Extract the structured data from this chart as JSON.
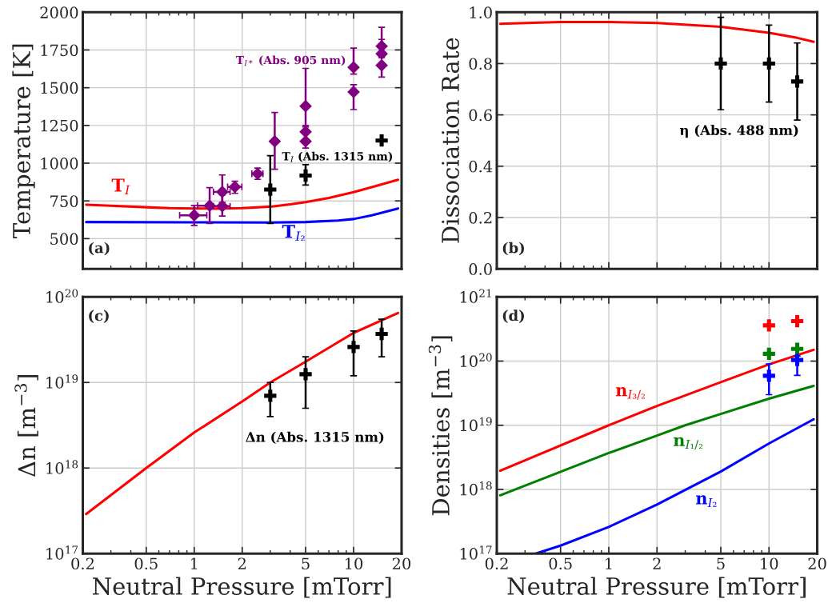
{
  "chart_data": [
    {
      "type": "scatter",
      "ylabel": "Temperature [K]",
      "log": "x",
      "grid": true,
      "tick_labels": "y",
      "xlim": [
        0.2,
        20
      ],
      "xticks": [
        0.2,
        0.5,
        1,
        2,
        5,
        10,
        20
      ],
      "ylim": [
        300,
        2000
      ],
      "yticks": [
        500,
        750,
        1000,
        1250,
        1500,
        1750,
        2000
      ],
      "annotations": [
        "(a)"
      ],
      "series": [
        {
          "name": "T$_{I*}$ (Abs. 905 nm)",
          "color": "#800080",
          "marker": "diamond",
          "x": [
            1.0,
            1.25,
            1.5,
            1.5,
            1.8,
            2.5,
            3.2,
            5,
            5,
            5,
            10,
            10,
            15,
            15,
            15
          ],
          "values": [
            655,
            718,
            810,
            715,
            843,
            930,
            1145,
            1378,
            1208,
            1145,
            1635,
            1472,
            1775,
            1725,
            1648
          ],
          "errors": [
            [
              588,
              720
            ],
            [
              600,
              838
            ],
            [
              740,
              922
            ],
            [
              650,
              790
            ],
            [
              800,
              880
            ],
            [
              893,
              968
            ],
            [
              960,
              1336
            ],
            [
              1240,
              1628
            ],
            [
              1150,
              1250
            ],
            [
              1100,
              1195
            ],
            [
              1590,
              1762
            ],
            [
              1355,
              1520
            ],
            [
              1700,
              1900
            ],
            [
              1725,
              1820
            ],
            [
              1570,
              1648
            ]
          ],
          "xerrors": [
            [
              0.81,
              1.2
            ],
            [
              1.05,
              1.25
            ],
            [
              1.32,
              1.68
            ],
            [
              1.32,
              1.68
            ],
            [
              1.62,
              1.99
            ],
            [
              2.3,
              2.7
            ],
            null,
            null,
            null,
            null,
            null,
            null,
            null,
            null,
            null
          ]
        },
        {
          "name": "T$_{I}$ (Abs. 1315 nm)",
          "color": "#000000",
          "marker": "cross",
          "x": [
            3,
            5,
            15
          ],
          "values": [
            825,
            918,
            1150
          ],
          "errors": [
            [
              600,
              1050
            ],
            [
              855,
              990
            ],
            null
          ]
        },
        {
          "type": "line",
          "name": "T$_{I}$",
          "color": "#ff0000",
          "marker": "none",
          "x": [
            0.21,
            0.3,
            0.5,
            0.7,
            1,
            1.5,
            2,
            3,
            4,
            5,
            7,
            10,
            14,
            19
          ],
          "values": [
            725,
            718,
            708,
            702,
            700,
            699,
            702,
            712,
            727,
            742,
            770,
            808,
            850,
            890
          ]
        },
        {
          "type": "line",
          "name": "T$_{I₂}$",
          "color": "#0000ff",
          "marker": "none",
          "x": [
            0.21,
            1,
            3,
            5,
            8,
            10,
            13,
            19
          ],
          "values": [
            610,
            608,
            607,
            610,
            620,
            630,
            655,
            700
          ]
        }
      ]
    },
    {
      "type": "scatter",
      "ylabel": "Dissociation Rate",
      "log": "x",
      "grid": true,
      "tick_labels": "y",
      "xlim": [
        0.2,
        20
      ],
      "xticks": [
        0.2,
        0.5,
        1,
        2,
        5,
        10,
        20
      ],
      "ylim": [
        0,
        1
      ],
      "yticks": [
        {
          "value": 0,
          "label": "0.0"
        },
        0.2,
        0.4,
        0.6,
        0.8,
        {
          "value": 1,
          "label": "1.0"
        }
      ],
      "annotations": [
        "(b)"
      ],
      "series": [
        {
          "type": "line",
          "color": "#ff0000",
          "marker": "none",
          "x": [
            0.21,
            0.5,
            1,
            2,
            5,
            10,
            15,
            19
          ],
          "values": [
            0.955,
            0.962,
            0.962,
            0.958,
            0.943,
            0.92,
            0.9,
            0.885
          ]
        },
        {
          "name": "η (Abs. 488 nm)",
          "color": "#000000",
          "marker": "cross",
          "x": [
            5,
            10,
            15
          ],
          "values": [
            0.8,
            0.8,
            0.73
          ],
          "errors": [
            [
              0.62,
              0.98
            ],
            [
              0.65,
              0.95
            ],
            [
              0.58,
              0.88
            ]
          ]
        }
      ]
    },
    {
      "type": "scatter",
      "xlabel": "Neutral Pressure [mTorr]",
      "ylabel": "Δn [m$^{−3}$]",
      "log": "xy",
      "grid": true,
      "xlim": [
        0.2,
        20
      ],
      "xticks": [
        0.2,
        0.5,
        1,
        2,
        5,
        10,
        20
      ],
      "ylim": [
        1e+17,
        1e+20
      ],
      "yticks": [
        {
          "value": 1e+17,
          "label": "10$^{17}$"
        },
        {
          "value": 1e+18,
          "label": "10$^{18}$"
        },
        {
          "value": 1e+19,
          "label": "10$^{19}$"
        },
        {
          "value": 1e+20,
          "label": "10$^{20}$"
        }
      ],
      "annotations": [
        "(c)"
      ],
      "series": [
        {
          "type": "line",
          "color": "#ff0000",
          "marker": "none",
          "x": [
            0.21,
            0.5,
            1,
            2,
            3,
            5,
            10,
            19
          ],
          "values": [
            2.9e+17,
            1e+18,
            2.6e+18,
            6e+18,
            1e+19,
            1.75e+19,
            3.8e+19,
            6.5e+19
          ]
        },
        {
          "name": "Δn (Abs. 1315 nm)",
          "color": "#000000",
          "marker": "cross",
          "x": [
            3,
            5,
            10,
            15
          ],
          "values": [
            7e+18,
            1.25e+19,
            2.6e+19,
            3.7e+19
          ],
          "errors": [
            [
              4e+18,
              1e+19
            ],
            [
              5e+18,
              2e+19
            ],
            [
              1.2e+19,
              4e+19
            ],
            [
              2e+19,
              5.5e+19
            ]
          ]
        }
      ]
    },
    {
      "type": "line",
      "xlabel": "Neutral Pressure [mTorr]",
      "ylabel": "Densities [m$^{−3}$]",
      "log": "xy",
      "grid": true,
      "xlim": [
        0.2,
        20
      ],
      "xticks": [
        0.2,
        0.5,
        1,
        2,
        5,
        10,
        20
      ],
      "ylim": [
        1e+17,
        1e+21
      ],
      "yticks": [
        {
          "value": 1e+17,
          "label": "10$^{17}$"
        },
        {
          "value": 1e+18,
          "label": "10$^{18}$"
        },
        {
          "value": 1e+19,
          "label": "10$^{19}$"
        },
        {
          "value": 1e+20,
          "label": "10$^{20}$"
        },
        {
          "value": 1e+21,
          "label": "10$^{21}$"
        }
      ],
      "annotations": [
        "(d)"
      ],
      "series": [
        {
          "name": "n$_{I₃/₂}$",
          "color": "#ff0000",
          "marker": "none",
          "x": [
            0.21,
            1,
            2,
            5,
            10,
            19
          ],
          "values": [
            1.95e+18,
            1e+19,
            2e+19,
            4.7e+19,
            8.9e+19,
            1.5e+20
          ]
        },
        {
          "name": "n$_{I₁/₂}$",
          "color": "#008000",
          "marker": "none",
          "x": [
            0.21,
            1,
            2,
            3,
            5,
            10,
            19
          ],
          "values": [
            8.1e+17,
            3.7e+18,
            6.9e+18,
            1e+19,
            1.5e+19,
            2.6e+19,
            4.1e+19
          ]
        },
        {
          "name": "n$_{I₂}$",
          "color": "#0000ff",
          "marker": "none",
          "x": [
            0.35,
            0.5,
            1,
            2,
            5,
            10,
            19
          ],
          "values": [
            1e+17,
            1.33e+17,
            2.6e+17,
            5.8e+17,
            1.9e+18,
            5.2e+18,
            1.24e+19
          ]
        },
        {
          "type": "scatter",
          "color": "#ff0000",
          "marker": "cross",
          "x": [
            10,
            15
          ],
          "values": [
            3.6e+20,
            4.2e+20
          ]
        },
        {
          "type": "scatter",
          "color": "#008000",
          "marker": "cross",
          "x": [
            10,
            15
          ],
          "values": [
            1.3e+20,
            1.55e+20
          ]
        },
        {
          "type": "scatter",
          "color": "#0000ff",
          "marker": "cross",
          "x": [
            10,
            15
          ],
          "values": [
            5.9e+19,
            1.04e+20
          ],
          "errors": [
            [
              3e+19,
              9e+19
            ],
            [
              6e+19,
              1.2e+20
            ]
          ]
        }
      ]
    }
  ]
}
